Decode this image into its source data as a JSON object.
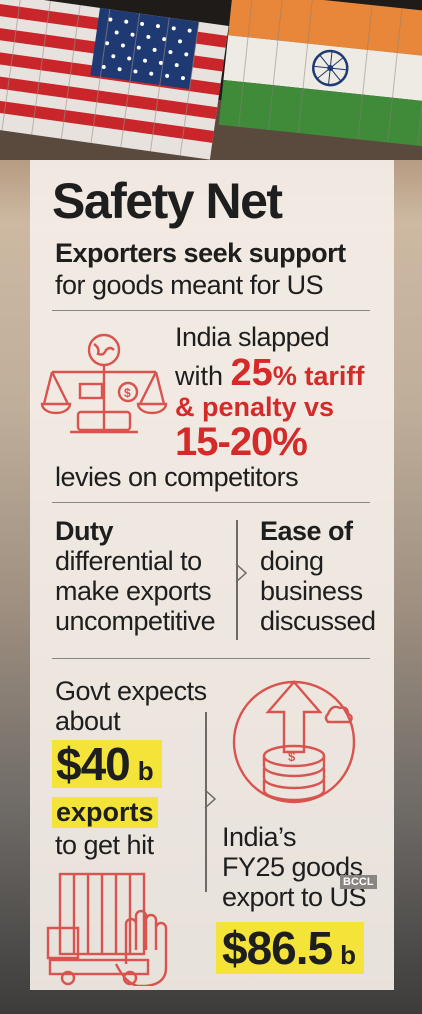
{
  "heading": {
    "title": "Safety Net",
    "subtitle_bold": "Exporters seek support",
    "subtitle": "for goods meant for US"
  },
  "tariff": {
    "line1": "India slapped",
    "line2_prefix": "with",
    "big_pct": "25",
    "line2_suffix": "% tariff",
    "line3": "& penalty vs",
    "range": "15-20%",
    "line5": "levies on competitors"
  },
  "duty": {
    "title": "Duty",
    "lines": [
      "differential to",
      "make exports",
      "uncompetitive"
    ]
  },
  "ease": {
    "lines": [
      "Ease of",
      "doing",
      "business",
      "discussed"
    ]
  },
  "govt": {
    "lines": [
      "Govt expects",
      "about"
    ],
    "value": "$40",
    "unit": "b",
    "exports": "exports",
    "tail": "to get hit"
  },
  "fy25": {
    "lines": [
      "India’s",
      "FY25 goods",
      "export to US"
    ],
    "value": "$86.5",
    "unit": "b"
  },
  "watermark": "BCCL",
  "colors": {
    "accent": "#d42a2a",
    "highlight": "#f4e43a",
    "icon": "#d9534f"
  }
}
